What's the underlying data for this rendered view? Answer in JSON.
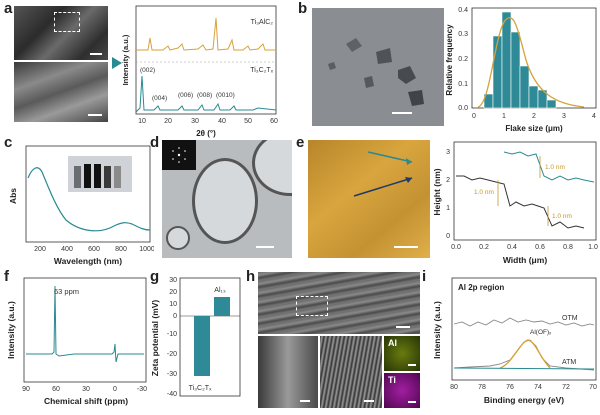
{
  "panels": {
    "a": {
      "letter": "a",
      "xrd": {
        "xlabel": "2θ (°)",
        "ylabel": "Intensity (a.u.)",
        "ticks": [
          "10",
          "20",
          "30",
          "40",
          "50",
          "60"
        ],
        "top_label": "Ti₃AlC₂",
        "bottom_label": "Ti₃C₂Tₓ",
        "peaks": [
          "(002)",
          "(004)",
          "(006)",
          "(008)",
          "(0010)"
        ]
      }
    },
    "b": {
      "letter": "b",
      "hist": {
        "xlabel": "Flake size (μm)",
        "ylabel": "Relative frequency",
        "xticks": [
          "0",
          "1",
          "2",
          "3",
          "4"
        ],
        "yticks": [
          "0.0",
          "0.1",
          "0.2",
          "0.3",
          "0.4"
        ]
      }
    },
    "c": {
      "letter": "c",
      "xlabel": "Wavelength (nm)",
      "ylabel": "Abs",
      "xticks": [
        "200",
        "400",
        "600",
        "800",
        "1000"
      ]
    },
    "d": {
      "letter": "d"
    },
    "e": {
      "letter": "e",
      "xlabel": "Width (μm)",
      "ylabel": "Height (nm)",
      "xticks": [
        "0.0",
        "0.2",
        "0.4",
        "0.6",
        "0.8",
        "1.0"
      ],
      "yticks": [
        "0",
        "1",
        "2",
        "3"
      ],
      "annot_upper": "1.0 nm",
      "annot_left": "1.0 nm",
      "annot_lower": "1.0 nm"
    },
    "f": {
      "letter": "f",
      "xlabel": "Chemical shift (ppm)",
      "ylabel": "Intensity (a.u.)",
      "xticks": [
        "90",
        "60",
        "30",
        "0",
        "-30"
      ],
      "peak_label": "63 ppm"
    },
    "g": {
      "letter": "g",
      "ylabel": "Zeta potential (mV)",
      "yticks": [
        "30",
        "20",
        "10",
        "0",
        "-10",
        "-20",
        "-30",
        "-40"
      ],
      "bar1_label": "Ti₃C₂Tₓ",
      "bar2_label": "Al₁₃"
    },
    "h": {
      "letter": "h",
      "al_label": "Al",
      "ti_label": "Ti"
    },
    "i": {
      "letter": "i",
      "title": "Al 2p region",
      "xlabel": "Binding energy (eV)",
      "ylabel": "Intensity (a.u.)",
      "xticks": [
        "80",
        "78",
        "76",
        "74",
        "72",
        "70"
      ],
      "otm": "OTM",
      "atm": "ATM",
      "aloh": "Al(OF)ₓ"
    }
  },
  "colors": {
    "teal": "#2a8a92",
    "gold": "#d8a23a",
    "afm_gold": "#c8952f"
  }
}
